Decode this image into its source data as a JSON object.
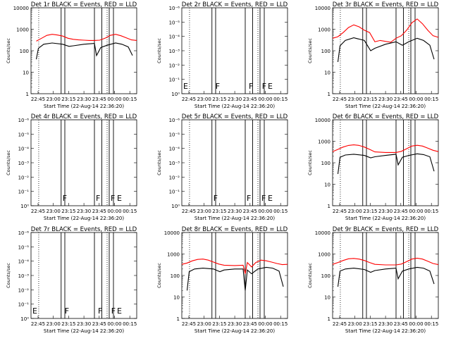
{
  "x_label": "Start Time (22-Aug-14 22:36:20)",
  "y_label": "Counts/sec",
  "x_ticks": [
    "22:45",
    "23:00",
    "23:15",
    "23:30",
    "23:45",
    "00:00",
    "00:15"
  ],
  "colors": {
    "events": "#000000",
    "lld": "#ff0000"
  },
  "chart_data": [
    {
      "type": "line",
      "title": "Det 1r BLACK = Events, RED = LLD",
      "scale": "log",
      "yticks": [
        "1",
        "10",
        "100",
        "1000",
        "10000"
      ],
      "flags": [],
      "series": [
        {
          "values": [
            [
              0.0,
              null
            ],
            [
              0.05,
              280
            ],
            [
              0.1,
              380
            ],
            [
              0.15,
              520
            ],
            [
              0.2,
              580
            ],
            [
              0.25,
              540
            ],
            [
              0.3,
              480
            ],
            [
              0.35,
              380
            ],
            [
              0.4,
              340
            ],
            [
              0.45,
              320
            ],
            [
              0.5,
              310
            ],
            [
              0.55,
              300
            ],
            [
              0.6,
              300
            ],
            [
              0.65,
              310
            ],
            [
              0.7,
              380
            ],
            [
              0.75,
              520
            ],
            [
              0.8,
              580
            ],
            [
              0.85,
              500
            ],
            [
              0.9,
              400
            ],
            [
              0.95,
              320
            ],
            [
              1.0,
              300
            ]
          ]
        },
        {
          "values": [
            [
              0.05,
              40
            ],
            [
              0.07,
              130
            ],
            [
              0.12,
              200
            ],
            [
              0.2,
              230
            ],
            [
              0.3,
              200
            ],
            [
              0.36,
              160
            ],
            [
              0.4,
              170
            ],
            [
              0.5,
              200
            ],
            [
              0.6,
              220
            ],
            [
              0.62,
              60
            ],
            [
              0.66,
              140
            ],
            [
              0.72,
              180
            ],
            [
              0.8,
              230
            ],
            [
              0.86,
              200
            ],
            [
              0.92,
              150
            ],
            [
              0.96,
              60
            ]
          ]
        }
      ]
    },
    {
      "type": "line",
      "title": "Det 2r BLACK = Events, RED = LLD",
      "scale": "sci",
      "yticks": [
        "10⁰",
        "10⁻¹",
        "10⁻²",
        "10⁻³",
        "10⁻⁴",
        "10⁻⁵",
        "10⁻⁶"
      ],
      "flags": [
        "E",
        "F",
        "F",
        "F",
        "E"
      ],
      "series": []
    },
    {
      "type": "line",
      "title": "Det 3r BLACK = Events, RED = LLD",
      "scale": "log",
      "yticks": [
        "1",
        "10",
        "100",
        "1000",
        "10000"
      ],
      "flags": [],
      "series": [
        {
          "values": [
            [
              0.0,
              380
            ],
            [
              0.05,
              450
            ],
            [
              0.1,
              700
            ],
            [
              0.15,
              1200
            ],
            [
              0.2,
              1600
            ],
            [
              0.25,
              1300
            ],
            [
              0.3,
              900
            ],
            [
              0.35,
              700
            ],
            [
              0.4,
              260
            ],
            [
              0.45,
              300
            ],
            [
              0.55,
              250
            ],
            [
              0.6,
              380
            ],
            [
              0.65,
              500
            ],
            [
              0.7,
              900
            ],
            [
              0.75,
              2000
            ],
            [
              0.8,
              3000
            ],
            [
              0.85,
              1800
            ],
            [
              0.9,
              900
            ],
            [
              0.95,
              500
            ],
            [
              1.0,
              420
            ]
          ]
        },
        {
          "values": [
            [
              0.05,
              30
            ],
            [
              0.07,
              170
            ],
            [
              0.12,
              300
            ],
            [
              0.2,
              400
            ],
            [
              0.3,
              300
            ],
            [
              0.36,
              100
            ],
            [
              0.4,
              130
            ],
            [
              0.5,
              200
            ],
            [
              0.6,
              260
            ],
            [
              0.66,
              180
            ],
            [
              0.72,
              260
            ],
            [
              0.8,
              380
            ],
            [
              0.86,
              300
            ],
            [
              0.92,
              180
            ],
            [
              0.96,
              40
            ]
          ]
        }
      ]
    },
    {
      "type": "line",
      "title": "Det 4r BLACK = Events, RED = LLD",
      "scale": "sci",
      "yticks": [
        "10⁰",
        "10⁻¹",
        "10⁻²",
        "10⁻³",
        "10⁻⁴",
        "10⁻⁵",
        "10⁻⁶"
      ],
      "flags": [
        "F",
        "F",
        "F",
        "E"
      ],
      "series": []
    },
    {
      "type": "line",
      "title": "Det 5r BLACK = Events, RED = LLD",
      "scale": "sci",
      "yticks": [
        "10⁰",
        "10⁻¹",
        "10⁻²",
        "10⁻³",
        "10⁻⁴",
        "10⁻⁵",
        "10⁻⁶"
      ],
      "flags": [
        "F",
        "F",
        "F",
        "E"
      ],
      "series": []
    },
    {
      "type": "line",
      "title": "Det 6r BLACK = Events, RED = LLD",
      "scale": "log",
      "yticks": [
        "1",
        "10",
        "100",
        "1000",
        "10000"
      ],
      "flags": [],
      "series": [
        {
          "values": [
            [
              0.0,
              330
            ],
            [
              0.05,
              420
            ],
            [
              0.1,
              540
            ],
            [
              0.15,
              640
            ],
            [
              0.2,
              680
            ],
            [
              0.25,
              640
            ],
            [
              0.3,
              540
            ],
            [
              0.35,
              420
            ],
            [
              0.4,
              320
            ],
            [
              0.5,
              300
            ],
            [
              0.6,
              300
            ],
            [
              0.65,
              340
            ],
            [
              0.7,
              450
            ],
            [
              0.75,
              600
            ],
            [
              0.8,
              650
            ],
            [
              0.85,
              600
            ],
            [
              0.9,
              480
            ],
            [
              0.95,
              380
            ],
            [
              1.0,
              330
            ]
          ]
        },
        {
          "values": [
            [
              0.05,
              30
            ],
            [
              0.07,
              180
            ],
            [
              0.12,
              230
            ],
            [
              0.2,
              250
            ],
            [
              0.3,
              220
            ],
            [
              0.36,
              170
            ],
            [
              0.4,
              190
            ],
            [
              0.5,
              220
            ],
            [
              0.6,
              250
            ],
            [
              0.62,
              80
            ],
            [
              0.66,
              180
            ],
            [
              0.72,
              220
            ],
            [
              0.8,
              260
            ],
            [
              0.86,
              240
            ],
            [
              0.92,
              190
            ],
            [
              0.96,
              40
            ]
          ]
        }
      ]
    },
    {
      "type": "line",
      "title": "Det 7r BLACK = Events, RED = LLD",
      "scale": "sci",
      "yticks": [
        "10⁰",
        "10⁻¹",
        "10⁻²",
        "10⁻³",
        "10⁻⁴",
        "10⁻⁵",
        "10⁻⁶"
      ],
      "flags": [
        "E",
        "F",
        "F",
        "F",
        "E"
      ],
      "series": []
    },
    {
      "type": "line",
      "title": "Det 8r BLACK = Events, RED = LLD",
      "scale": "log",
      "yticks": [
        "1",
        "10",
        "100",
        "1000",
        "10000"
      ],
      "flags": [],
      "series": [
        {
          "values": [
            [
              0.0,
              330
            ],
            [
              0.05,
              380
            ],
            [
              0.1,
              480
            ],
            [
              0.15,
              560
            ],
            [
              0.2,
              580
            ],
            [
              0.25,
              520
            ],
            [
              0.3,
              420
            ],
            [
              0.35,
              340
            ],
            [
              0.4,
              300
            ],
            [
              0.5,
              290
            ],
            [
              0.58,
              300
            ],
            [
              0.6,
              120
            ],
            [
              0.62,
              400
            ],
            [
              0.66,
              250
            ],
            [
              0.7,
              400
            ],
            [
              0.75,
              520
            ],
            [
              0.8,
              480
            ],
            [
              0.85,
              420
            ],
            [
              0.9,
              360
            ],
            [
              0.95,
              320
            ],
            [
              1.0,
              330
            ]
          ]
        },
        {
          "values": [
            [
              0.05,
              20
            ],
            [
              0.07,
              150
            ],
            [
              0.12,
              200
            ],
            [
              0.2,
              220
            ],
            [
              0.3,
              200
            ],
            [
              0.36,
              150
            ],
            [
              0.4,
              180
            ],
            [
              0.5,
              200
            ],
            [
              0.58,
              200
            ],
            [
              0.6,
              20
            ],
            [
              0.62,
              180
            ],
            [
              0.66,
              120
            ],
            [
              0.72,
              200
            ],
            [
              0.8,
              240
            ],
            [
              0.86,
              220
            ],
            [
              0.92,
              160
            ],
            [
              0.96,
              30
            ]
          ]
        }
      ]
    },
    {
      "type": "line",
      "title": "Det 9r BLACK = Events, RED = LLD",
      "scale": "log",
      "yticks": [
        "1",
        "10",
        "100",
        "1000",
        "10000"
      ],
      "flags": [],
      "series": [
        {
          "values": [
            [
              0.0,
              330
            ],
            [
              0.05,
              400
            ],
            [
              0.1,
              500
            ],
            [
              0.15,
              600
            ],
            [
              0.2,
              620
            ],
            [
              0.25,
              580
            ],
            [
              0.3,
              500
            ],
            [
              0.35,
              400
            ],
            [
              0.4,
              330
            ],
            [
              0.5,
              310
            ],
            [
              0.6,
              310
            ],
            [
              0.65,
              340
            ],
            [
              0.7,
              440
            ],
            [
              0.75,
              580
            ],
            [
              0.8,
              640
            ],
            [
              0.85,
              580
            ],
            [
              0.9,
              460
            ],
            [
              0.95,
              360
            ],
            [
              1.0,
              320
            ]
          ]
        },
        {
          "values": [
            [
              0.05,
              30
            ],
            [
              0.07,
              160
            ],
            [
              0.12,
              200
            ],
            [
              0.2,
              220
            ],
            [
              0.3,
              190
            ],
            [
              0.36,
              140
            ],
            [
              0.4,
              170
            ],
            [
              0.5,
              200
            ],
            [
              0.6,
              220
            ],
            [
              0.62,
              70
            ],
            [
              0.66,
              160
            ],
            [
              0.72,
              200
            ],
            [
              0.8,
              240
            ],
            [
              0.86,
              220
            ],
            [
              0.92,
              160
            ],
            [
              0.96,
              40
            ]
          ]
        }
      ]
    }
  ]
}
